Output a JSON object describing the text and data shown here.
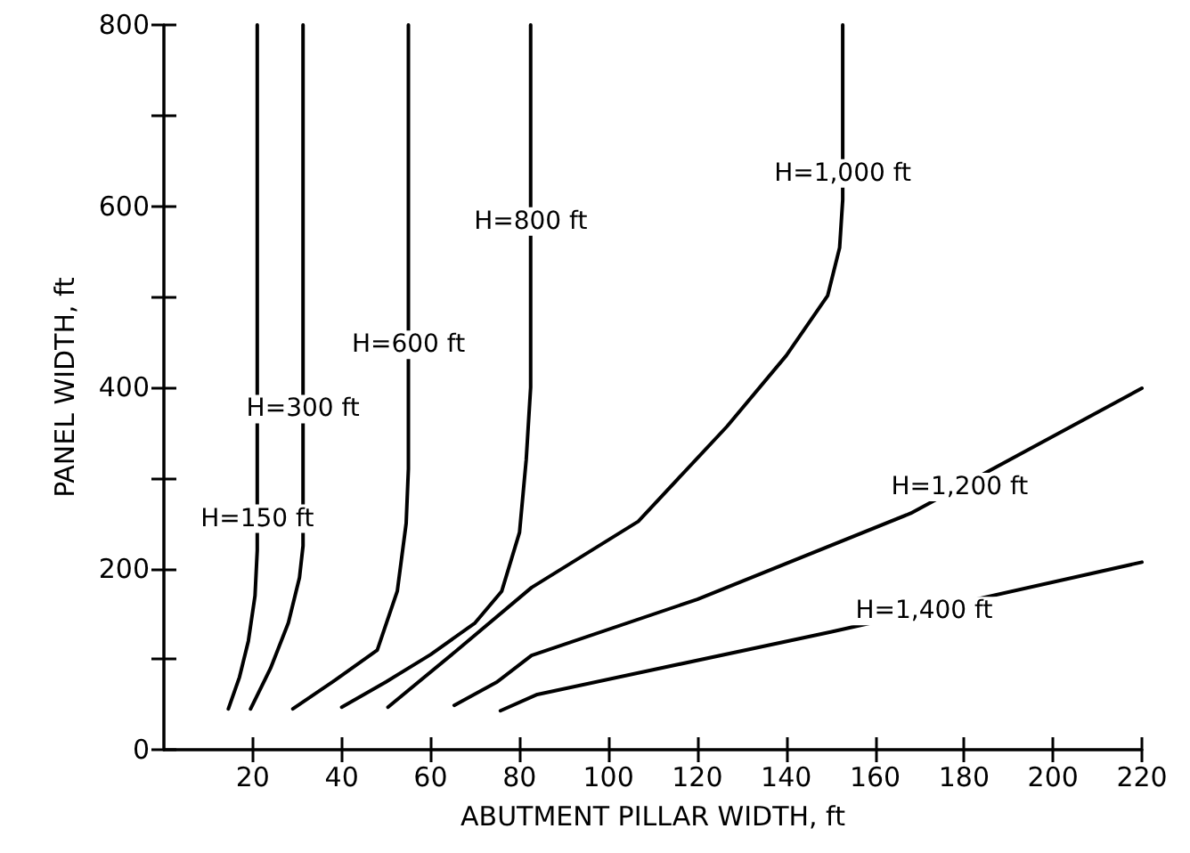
{
  "chart_data": {
    "type": "line",
    "xlabel": "ABUTMENT PILLAR WIDTH, ft",
    "ylabel": "PANEL WIDTH, ft",
    "xlim": [
      0,
      220
    ],
    "xticks": [
      20,
      40,
      60,
      80,
      100,
      120,
      140,
      160,
      180,
      200,
      220
    ],
    "ylim": [
      0,
      800
    ],
    "yticks": [
      0,
      {
        "value": 100,
        "label": null
      },
      200,
      {
        "value": 300,
        "label": null
      },
      400,
      {
        "value": 500,
        "label": null
      },
      600,
      {
        "value": 700,
        "label": null
      },
      800
    ],
    "grid": false,
    "marker": "none",
    "line_style": "solid",
    "series": [
      {
        "color": "#000000",
        "x": [
          14.5,
          17,
          19,
          20.5,
          21,
          21
        ],
        "values": [
          45,
          80,
          120,
          170,
          220,
          800
        ]
      },
      {
        "color": "#000000",
        "x": [
          19.5,
          24,
          28,
          30.5,
          31.3,
          31.3
        ],
        "values": [
          45,
          90,
          140,
          190,
          225,
          800
        ]
      },
      {
        "color": "#000000",
        "x": [
          29,
          38,
          48,
          52.5,
          54.5,
          55,
          55
        ],
        "values": [
          45,
          75,
          110,
          175,
          250,
          310,
          800
        ]
      },
      {
        "color": "#000000",
        "x": [
          40,
          50,
          60,
          70,
          76,
          80,
          81.5,
          82.5,
          82.5
        ],
        "values": [
          47,
          75,
          105,
          140,
          175,
          240,
          320,
          400,
          800
        ]
      },
      {
        "color": "#000000",
        "x": [
          50.4,
          66,
          82.7,
          106.7,
          126.7,
          140,
          149.3,
          152,
          152.7,
          152.7
        ],
        "values": [
          47,
          110,
          179,
          252,
          357,
          435,
          501,
          554,
          607,
          800
        ]
      },
      {
        "color": "#000000",
        "x": [
          65.3,
          75,
          82.7,
          120,
          168,
          220
        ],
        "values": [
          49,
          75,
          104,
          166,
          261,
          399
        ]
      },
      {
        "color": "#000000",
        "x": [
          75.7,
          84,
          150,
          220
        ],
        "values": [
          43,
          61,
          130,
          207
        ]
      }
    ],
    "annotations": [
      {
        "text": "H=150 ft",
        "x": 21,
        "y": 255
      },
      {
        "text": "H=300 ft",
        "x": 31.3,
        "y": 376
      },
      {
        "text": "H=600 ft",
        "x": 55,
        "y": 447
      },
      {
        "text": "H=800 ft",
        "x": 82.5,
        "y": 583
      },
      {
        "text": "H=1,000 ft",
        "x": 152.7,
        "y": 636
      },
      {
        "text": "H=1,200 ft",
        "x": 179,
        "y": 290
      },
      {
        "text": "H=1,400 ft",
        "x": 171,
        "y": 153
      }
    ]
  }
}
